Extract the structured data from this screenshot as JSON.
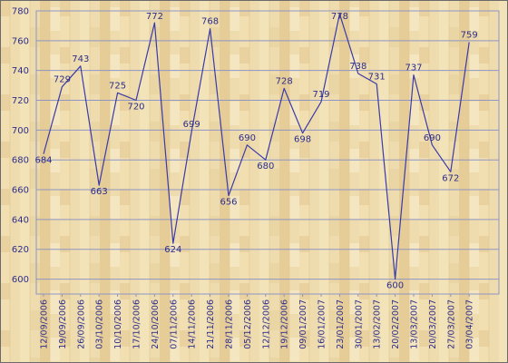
{
  "chart_data": {
    "type": "line",
    "title": "",
    "xlabel": "",
    "ylabel": "",
    "ylim": [
      590,
      780
    ],
    "y_ticks": [
      600,
      620,
      640,
      660,
      680,
      700,
      720,
      740,
      760,
      780
    ],
    "grid": true,
    "background": "light wood parquet texture",
    "colors": {
      "line": "#3a3aa8",
      "grid": "#8f95c4",
      "text": "#2c2c8a",
      "border": "#6b6b6b"
    },
    "x": [
      "12/09/2006",
      "19/09/2006",
      "26/09/2006",
      "03/10/2006",
      "10/10/2006",
      "17/10/2006",
      "24/10/2006",
      "07/11/2006",
      "14/11/2006",
      "21/11/2006",
      "28/11/2006",
      "05/12/2006",
      "12/12/2006",
      "19/12/2006",
      "09/01/2007",
      "16/01/2007",
      "23/01/2007",
      "30/01/2007",
      "13/02/2007",
      "20/02/2007",
      "13/03/2007",
      "20/03/2007",
      "27/03/2007",
      "03/04/2007"
    ],
    "series": [
      {
        "values": [
          684,
          729,
          743,
          663,
          725,
          720,
          772,
          624,
          699,
          768,
          656,
          690,
          680,
          728,
          698,
          719,
          778,
          738,
          731,
          600,
          737,
          690,
          672,
          759
        ]
      }
    ]
  }
}
